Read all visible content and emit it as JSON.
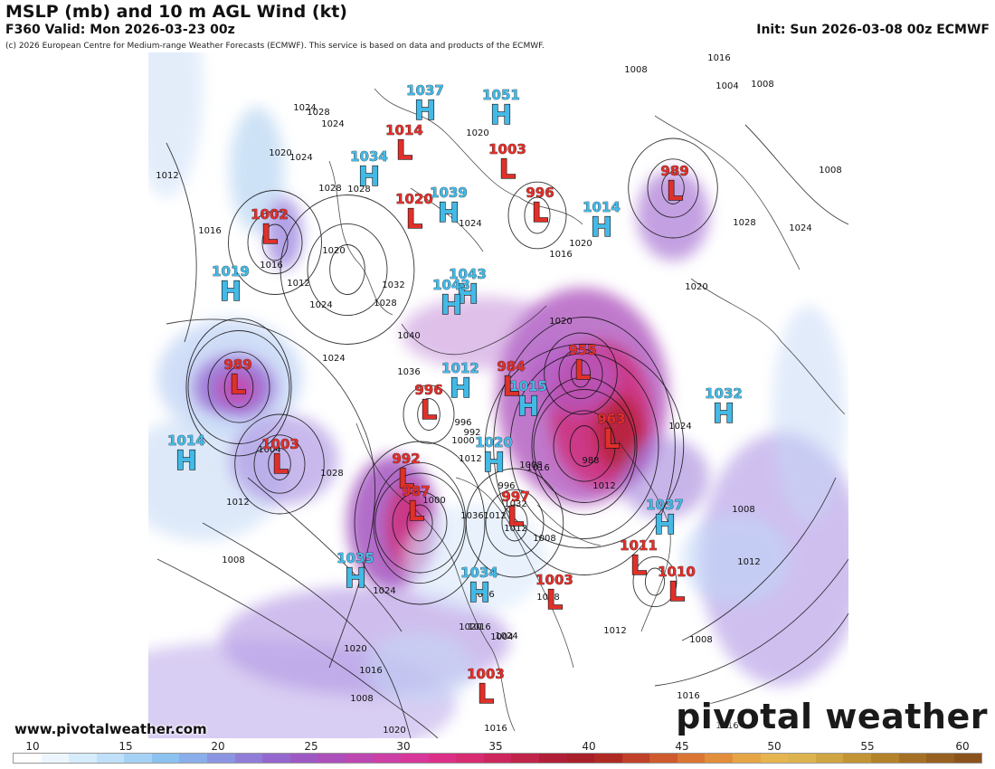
{
  "header": {
    "title": "MSLP (mb) and 10 m AGL Wind (kt)",
    "valid": "F360 Valid: Mon 2026-03-23 00z",
    "init": "Init: Sun 2026-03-08 00z ECMWF",
    "copyright": "(c) 2026 European Centre for Medium-range Weather Forecasts (ECMWF). This service is based on data and products of the ECMWF."
  },
  "footer": {
    "website": "www.pivotalweather.com",
    "brand": "pivotal weather"
  },
  "colorbar": {
    "ticks": [
      "10",
      "15",
      "20",
      "25",
      "30",
      "35",
      "40",
      "45",
      "50",
      "55",
      "60"
    ],
    "colors": [
      "#ffffff",
      "#eef6fd",
      "#d7ecfb",
      "#bfe0f8",
      "#a5d2f4",
      "#8cc2ef",
      "#8aaeea",
      "#8c95e2",
      "#8f7dd8",
      "#9467cf",
      "#9e58c4",
      "#ad4fba",
      "#bd47b0",
      "#cc3fa4",
      "#d7379a",
      "#dc2f88",
      "#d72b72",
      "#cd265c",
      "#c02449",
      "#b01f37",
      "#a81e2a",
      "#b02a24",
      "#c04028",
      "#cf5a2d",
      "#db7534",
      "#e28e3c",
      "#e6a545",
      "#e6b54f",
      "#ddb350",
      "#cfa544",
      "#c29435",
      "#b3822b",
      "#a57025",
      "#986020",
      "#8c521c"
    ]
  },
  "pressure_centers": [
    {
      "type": "H",
      "value": "1037"
    },
    {
      "type": "H",
      "value": "1051"
    },
    {
      "type": "L",
      "value": "1014"
    },
    {
      "type": "L",
      "value": "1003"
    },
    {
      "type": "H",
      "value": "1034"
    },
    {
      "type": "L",
      "value": "989"
    },
    {
      "type": "L",
      "value": "1020"
    },
    {
      "type": "H",
      "value": "1039"
    },
    {
      "type": "L",
      "value": "996"
    },
    {
      "type": "H",
      "value": "1014"
    },
    {
      "type": "L",
      "value": "1002"
    },
    {
      "type": "H",
      "value": "1019"
    },
    {
      "type": "H",
      "value": "1043"
    },
    {
      "type": "H",
      "value": "1043"
    },
    {
      "type": "L",
      "value": "955"
    },
    {
      "type": "L",
      "value": "989"
    },
    {
      "type": "H",
      "value": "1012"
    },
    {
      "type": "L",
      "value": "984"
    },
    {
      "type": "L",
      "value": "996"
    },
    {
      "type": "H",
      "value": "1015"
    },
    {
      "type": "H",
      "value": "1032"
    },
    {
      "type": "L",
      "value": "963"
    },
    {
      "type": "H",
      "value": "1014"
    },
    {
      "type": "L",
      "value": "1003"
    },
    {
      "type": "H",
      "value": "1020"
    },
    {
      "type": "L",
      "value": "992"
    },
    {
      "type": "L",
      "value": "987"
    },
    {
      "type": "L",
      "value": "997"
    },
    {
      "type": "H",
      "value": "1037"
    },
    {
      "type": "L",
      "value": "1011"
    },
    {
      "type": "L",
      "value": "1010"
    },
    {
      "type": "H",
      "value": "1035"
    },
    {
      "type": "H",
      "value": "1034"
    },
    {
      "type": "L",
      "value": "1003"
    },
    {
      "type": "L",
      "value": "1003"
    }
  ],
  "isobar_labels": [
    "1012",
    "1008",
    "1016",
    "1012",
    "1004",
    "1008",
    "1008",
    "1016",
    "1020",
    "1024",
    "1020",
    "1028",
    "1024",
    "1028",
    "1024",
    "1012",
    "1016",
    "1016",
    "1020",
    "1024",
    "1028",
    "1012",
    "1016",
    "1020",
    "1012",
    "1024",
    "1032",
    "1028",
    "1024",
    "1020",
    "1016",
    "1008",
    "1012",
    "1020",
    "1016",
    "1008",
    "1012",
    "1008",
    "1012",
    "1020",
    "1024",
    "1028",
    "1020",
    "1016",
    "1020",
    "1012",
    "1008",
    "1004",
    "1008",
    "1012",
    "1016",
    "1020",
    "1024",
    "1036",
    "1040",
    "996",
    "992",
    "1000",
    "1004",
    "988",
    "1012",
    "1024",
    "1028",
    "1024",
    "1032",
    "1036",
    "1008",
    "1016",
    "1012",
    "1008",
    "1016",
    "1016",
    "1012",
    "1000",
    "1004",
    "1016",
    "1020",
    "996"
  ],
  "map_features": {
    "wind_shading": "10 m wind speed (kt)",
    "contours": "MSLP isobars every 4 mb",
    "projection": "northern hemisphere polar view"
  },
  "colors": {
    "high_label": "#43b9e6",
    "low_label": "#e0302a"
  }
}
